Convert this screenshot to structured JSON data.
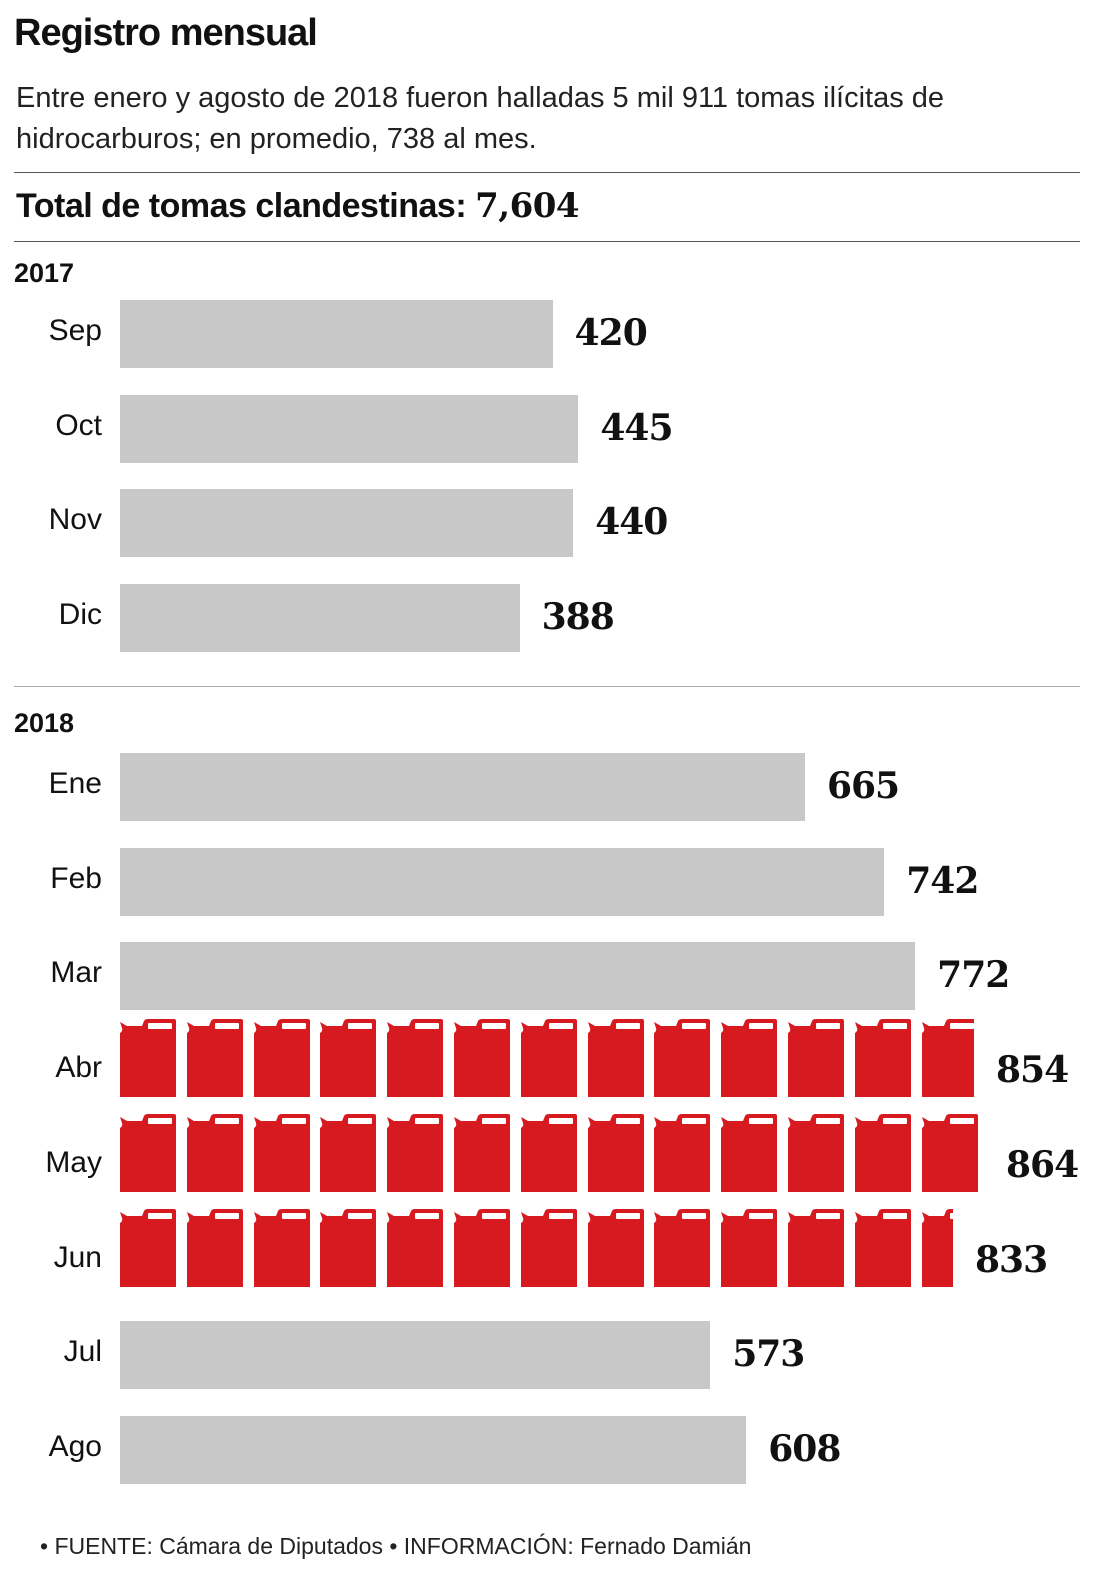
{
  "header": {
    "title": "Registro mensual",
    "subtitle": "Entre enero y agosto de 2018 fueron halladas 5 mil 911 tomas ilícitas de hidrocarburos; en promedio, 738 al mes.",
    "total_label": "Total de tomas clandestinas:",
    "total_value": "7,604"
  },
  "footer": "• FUENTE: Cámara de Diputados • INFORMACIÓN: Fernado Damián",
  "colors": {
    "bar": "#c8c8c8",
    "highlight": "#d71920"
  },
  "chart_data": {
    "type": "bar",
    "orientation": "horizontal",
    "groups": [
      {
        "year": "2017",
        "categories": [
          "Sep",
          "Oct",
          "Nov",
          "Dic"
        ],
        "values": [
          420,
          445,
          440,
          388
        ],
        "highlight": [
          false,
          false,
          false,
          false
        ]
      },
      {
        "year": "2018",
        "categories": [
          "Ene",
          "Feb",
          "Mar",
          "Abr",
          "May",
          "Jun",
          "Jul",
          "Ago"
        ],
        "values": [
          665,
          742,
          772,
          854,
          864,
          833,
          573,
          608
        ],
        "highlight": [
          false,
          false,
          false,
          true,
          true,
          true,
          false,
          false
        ],
        "highlight_icon": "jerrycan-icon"
      }
    ]
  }
}
